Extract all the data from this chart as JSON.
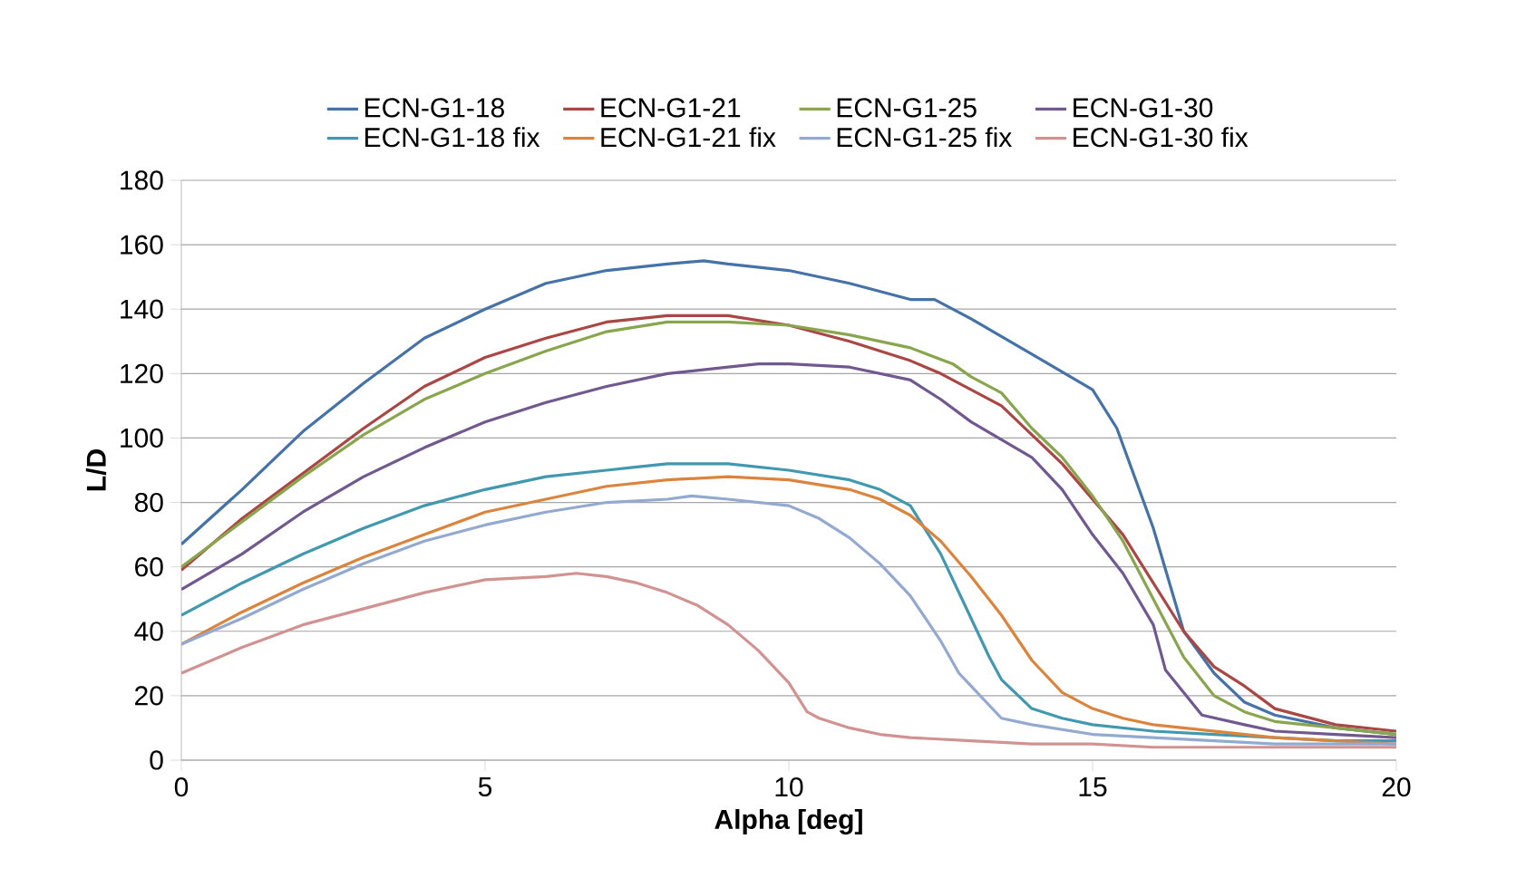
{
  "chart_data": {
    "type": "line",
    "xlabel": "Alpha [deg]",
    "ylabel": "L/D",
    "xlim": [
      0,
      20
    ],
    "xticks": [
      0,
      5,
      10,
      15,
      20
    ],
    "ylim": [
      0,
      180
    ],
    "yticks": [
      0,
      20,
      40,
      60,
      80,
      100,
      120,
      140,
      160,
      180
    ],
    "grid": "y",
    "legend": "top",
    "marker": "none",
    "line_style": "solid",
    "series": [
      {
        "name": "ECN-G1-18",
        "color": "#4572a7",
        "x": [
          0,
          1,
          2,
          3,
          4,
          5,
          6,
          7,
          8,
          8.6,
          9,
          10,
          11,
          12,
          12.4,
          13,
          14,
          15,
          15.4,
          16,
          16.5,
          17,
          17.5,
          18,
          19,
          20
        ],
        "values": [
          67,
          84,
          102,
          117,
          131,
          140,
          148,
          152,
          154,
          155,
          154,
          152,
          148,
          143,
          143,
          137,
          126,
          115,
          103,
          72,
          40,
          27,
          18,
          14,
          10,
          8
        ]
      },
      {
        "name": "ECN-G1-21",
        "color": "#aa4643",
        "x": [
          0,
          1,
          2,
          3,
          4,
          5,
          6,
          7,
          8,
          9,
          10,
          11,
          12,
          12.5,
          13,
          13.5,
          14,
          14.5,
          15,
          15.5,
          16,
          16.5,
          17,
          17.5,
          18,
          19,
          20
        ],
        "values": [
          59,
          75,
          89,
          103,
          116,
          125,
          131,
          136,
          138,
          138,
          135,
          130,
          124,
          120,
          115,
          110,
          101,
          92,
          81,
          70,
          55,
          40,
          29,
          23,
          16,
          11,
          9
        ]
      },
      {
        "name": "ECN-G1-25",
        "color": "#89a54e",
        "x": [
          0,
          1,
          2,
          3,
          4,
          5,
          6,
          7,
          8,
          9,
          10,
          11,
          12,
          12.7,
          13,
          13.5,
          14,
          14.5,
          15,
          15.5,
          16,
          16.5,
          17,
          17.5,
          18,
          19,
          20
        ],
        "values": [
          60,
          74,
          88,
          101,
          112,
          120,
          127,
          133,
          136,
          136,
          135,
          132,
          128,
          123,
          119,
          114,
          103,
          94,
          82,
          68,
          50,
          32,
          20,
          15,
          12,
          10,
          8
        ]
      },
      {
        "name": "ECN-G1-30",
        "color": "#71588f",
        "x": [
          0,
          1,
          2,
          3,
          4,
          5,
          6,
          7,
          8,
          9,
          9.5,
          10,
          11,
          12,
          12.5,
          13,
          14,
          14.5,
          15,
          15.5,
          16,
          16.2,
          16.8,
          17.5,
          18,
          19,
          20
        ],
        "values": [
          53,
          64,
          77,
          88,
          97,
          105,
          111,
          116,
          120,
          122,
          123,
          123,
          122,
          118,
          112,
          105,
          94,
          84,
          70,
          58,
          42,
          28,
          14,
          11,
          9,
          8,
          7
        ]
      },
      {
        "name": "ECN-G1-18 fix",
        "color": "#4198af",
        "x": [
          0,
          1,
          2,
          3,
          4,
          5,
          6,
          7,
          7.5,
          8,
          9,
          10,
          11,
          11.5,
          12,
          12.5,
          13,
          13.3,
          13.5,
          14,
          14.5,
          15,
          16,
          17,
          18,
          19,
          20
        ],
        "values": [
          45,
          55,
          64,
          72,
          79,
          84,
          88,
          90,
          91,
          92,
          92,
          90,
          87,
          84,
          79,
          64,
          44,
          32,
          25,
          16,
          13,
          11,
          9,
          8,
          7,
          6,
          6
        ]
      },
      {
        "name": "ECN-G1-21 fix",
        "color": "#db843d",
        "x": [
          0,
          1,
          2,
          3,
          4,
          5,
          6,
          7,
          8,
          9,
          10,
          11,
          11.5,
          12,
          12.5,
          13,
          13.5,
          14,
          14.5,
          15,
          15.5,
          16,
          17,
          18,
          19,
          20
        ],
        "values": [
          36,
          46,
          55,
          63,
          70,
          77,
          81,
          85,
          87,
          88,
          87,
          84,
          81,
          76,
          68,
          57,
          45,
          31,
          21,
          16,
          13,
          11,
          9,
          7,
          6,
          5
        ]
      },
      {
        "name": "ECN-G1-25 fix",
        "color": "#93a9cf",
        "x": [
          0,
          1,
          2,
          3,
          4,
          5,
          6,
          7,
          8,
          8.4,
          9,
          10,
          10.5,
          11,
          11.5,
          12,
          12.5,
          12.8,
          13,
          13.5,
          14,
          15,
          16,
          17,
          18,
          19,
          20
        ],
        "values": [
          36,
          44,
          53,
          61,
          68,
          73,
          77,
          80,
          81,
          82,
          81,
          79,
          75,
          69,
          61,
          51,
          37,
          27,
          23,
          13,
          11,
          8,
          7,
          6,
          5,
          5,
          5
        ]
      },
      {
        "name": "ECN-G1-30 fix",
        "color": "#d19392",
        "x": [
          0,
          1,
          2,
          3,
          4,
          5,
          6,
          6.5,
          7,
          7.5,
          8,
          8.5,
          9,
          9.5,
          10,
          10.3,
          10.5,
          11,
          11.5,
          12,
          13,
          14,
          15,
          16,
          17,
          18,
          19,
          20
        ],
        "values": [
          27,
          35,
          42,
          47,
          52,
          56,
          57,
          58,
          57,
          55,
          52,
          48,
          42,
          34,
          24,
          15,
          13,
          10,
          8,
          7,
          6,
          5,
          5,
          4,
          4,
          4,
          4,
          4
        ]
      }
    ]
  }
}
